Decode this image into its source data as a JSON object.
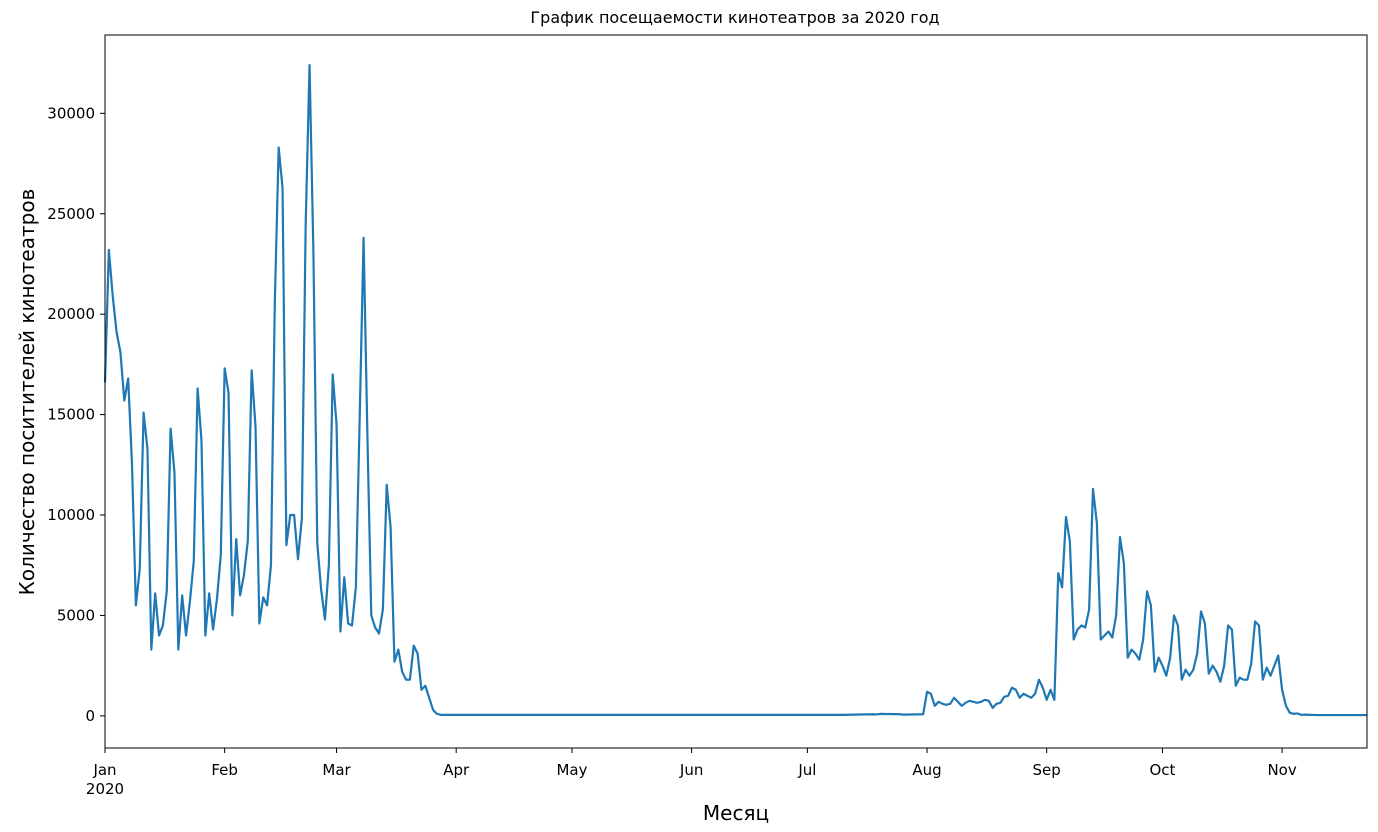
{
  "chart_data": {
    "type": "line",
    "title": "График посещаемости кинотеатров за 2020 год",
    "xlabel": "Месяц",
    "ylabel": "Количество поситителей кинотеатров",
    "x_axis": "date",
    "xlim": [
      "2020-01-01",
      "2020-11-23"
    ],
    "ylim": [
      -1600,
      33900
    ],
    "yticks": [
      0,
      5000,
      10000,
      15000,
      20000,
      25000,
      30000
    ],
    "xticks": [
      {
        "date": "2020-01-01",
        "label": "Jan",
        "sublabel": "2020"
      },
      {
        "date": "2020-02-01",
        "label": "Feb"
      },
      {
        "date": "2020-03-01",
        "label": "Mar"
      },
      {
        "date": "2020-04-01",
        "label": "Apr"
      },
      {
        "date": "2020-05-01",
        "label": "May"
      },
      {
        "date": "2020-06-01",
        "label": "Jun"
      },
      {
        "date": "2020-07-01",
        "label": "Jul"
      },
      {
        "date": "2020-08-01",
        "label": "Aug"
      },
      {
        "date": "2020-09-01",
        "label": "Sep"
      },
      {
        "date": "2020-10-01",
        "label": "Oct"
      },
      {
        "date": "2020-11-01",
        "label": "Nov"
      }
    ],
    "grid": false,
    "legend": "none",
    "line_color": "#1f77b4",
    "series": [
      {
        "x": [
          "2020-01-01",
          "2020-01-02",
          "2020-01-03",
          "2020-01-04",
          "2020-01-05",
          "2020-01-06",
          "2020-01-07",
          "2020-01-08",
          "2020-01-09",
          "2020-01-10",
          "2020-01-11",
          "2020-01-12",
          "2020-01-13",
          "2020-01-14",
          "2020-01-15",
          "2020-01-16",
          "2020-01-17",
          "2020-01-18",
          "2020-01-19",
          "2020-01-20",
          "2020-01-21",
          "2020-01-22",
          "2020-01-23",
          "2020-01-24",
          "2020-01-25",
          "2020-01-26",
          "2020-01-27",
          "2020-01-28",
          "2020-01-29",
          "2020-01-30",
          "2020-01-31",
          "2020-02-01",
          "2020-02-02",
          "2020-02-03",
          "2020-02-04",
          "2020-02-05",
          "2020-02-06",
          "2020-02-07",
          "2020-02-08",
          "2020-02-09",
          "2020-02-10",
          "2020-02-11",
          "2020-02-12",
          "2020-02-13",
          "2020-02-14",
          "2020-02-15",
          "2020-02-16",
          "2020-02-17",
          "2020-02-18",
          "2020-02-19",
          "2020-02-20",
          "2020-02-21",
          "2020-02-22",
          "2020-02-23",
          "2020-02-24",
          "2020-02-25",
          "2020-02-26",
          "2020-02-27",
          "2020-02-28",
          "2020-02-29",
          "2020-03-01",
          "2020-03-02",
          "2020-03-03",
          "2020-03-04",
          "2020-03-05",
          "2020-03-06",
          "2020-03-07",
          "2020-03-08",
          "2020-03-09",
          "2020-03-10",
          "2020-03-11",
          "2020-03-12",
          "2020-03-13",
          "2020-03-14",
          "2020-03-15",
          "2020-03-16",
          "2020-03-17",
          "2020-03-18",
          "2020-03-19",
          "2020-03-20",
          "2020-03-21",
          "2020-03-22",
          "2020-03-23",
          "2020-03-24",
          "2020-03-25",
          "2020-03-26",
          "2020-03-27",
          "2020-03-28",
          "2020-03-29",
          "2020-03-30",
          "2020-03-31",
          "2020-04-01",
          "2020-07-01",
          "2020-07-10",
          "2020-07-18",
          "2020-07-19",
          "2020-07-20",
          "2020-07-25",
          "2020-07-26",
          "2020-07-31",
          "2020-08-01",
          "2020-08-02",
          "2020-08-03",
          "2020-08-04",
          "2020-08-05",
          "2020-08-06",
          "2020-08-07",
          "2020-08-08",
          "2020-08-09",
          "2020-08-10",
          "2020-08-11",
          "2020-08-12",
          "2020-08-13",
          "2020-08-14",
          "2020-08-15",
          "2020-08-16",
          "2020-08-17",
          "2020-08-18",
          "2020-08-19",
          "2020-08-20",
          "2020-08-21",
          "2020-08-22",
          "2020-08-23",
          "2020-08-24",
          "2020-08-25",
          "2020-08-26",
          "2020-08-27",
          "2020-08-28",
          "2020-08-29",
          "2020-08-30",
          "2020-08-31",
          "2020-09-01",
          "2020-09-02",
          "2020-09-03",
          "2020-09-04",
          "2020-09-05",
          "2020-09-06",
          "2020-09-07",
          "2020-09-08",
          "2020-09-09",
          "2020-09-10",
          "2020-09-11",
          "2020-09-12",
          "2020-09-13",
          "2020-09-14",
          "2020-09-15",
          "2020-09-16",
          "2020-09-17",
          "2020-09-18",
          "2020-09-19",
          "2020-09-20",
          "2020-09-21",
          "2020-09-22",
          "2020-09-23",
          "2020-09-24",
          "2020-09-25",
          "2020-09-26",
          "2020-09-27",
          "2020-09-28",
          "2020-09-29",
          "2020-09-30",
          "2020-10-01",
          "2020-10-02",
          "2020-10-03",
          "2020-10-04",
          "2020-10-05",
          "2020-10-06",
          "2020-10-07",
          "2020-10-08",
          "2020-10-09",
          "2020-10-10",
          "2020-10-11",
          "2020-10-12",
          "2020-10-13",
          "2020-10-14",
          "2020-10-15",
          "2020-10-16",
          "2020-10-17",
          "2020-10-18",
          "2020-10-19",
          "2020-10-20",
          "2020-10-21",
          "2020-10-22",
          "2020-10-23",
          "2020-10-24",
          "2020-10-25",
          "2020-10-26",
          "2020-10-27",
          "2020-10-28",
          "2020-10-29",
          "2020-10-30",
          "2020-10-31",
          "2020-11-01",
          "2020-11-02",
          "2020-11-03",
          "2020-11-04",
          "2020-11-05",
          "2020-11-06",
          "2020-11-07",
          "2020-11-10",
          "2020-11-15",
          "2020-11-23"
        ],
        "y": [
          16600,
          23200,
          20900,
          19100,
          18100,
          15700,
          16800,
          12500,
          5500,
          7300,
          15100,
          13300,
          3300,
          6100,
          4000,
          4500,
          6200,
          14300,
          12100,
          3300,
          6000,
          4000,
          5700,
          7700,
          16300,
          13700,
          4000,
          6100,
          4300,
          5800,
          8000,
          17300,
          16100,
          5000,
          8800,
          6000,
          7000,
          8700,
          17200,
          14400,
          4600,
          5900,
          5500,
          7500,
          20600,
          28300,
          26300,
          8500,
          10000,
          10000,
          7800,
          9800,
          24500,
          32400,
          23100,
          8600,
          6300,
          4800,
          7500,
          17000,
          14500,
          4200,
          6900,
          4600,
          4500,
          6400,
          14900,
          23800,
          13900,
          5000,
          4400,
          4100,
          5300,
          11500,
          9400,
          2700,
          3300,
          2200,
          1800,
          1800,
          3500,
          3100,
          1300,
          1500,
          900,
          300,
          100,
          50,
          50,
          50,
          50,
          50,
          50,
          50,
          80,
          70,
          100,
          80,
          60,
          80,
          1200,
          1100,
          500,
          700,
          600,
          550,
          600,
          900,
          700,
          500,
          650,
          750,
          700,
          650,
          700,
          800,
          750,
          400,
          600,
          650,
          950,
          1000,
          1400,
          1300,
          900,
          1100,
          1000,
          900,
          1100,
          1800,
          1400,
          800,
          1300,
          800,
          7100,
          6400,
          9900,
          8700,
          3800,
          4300,
          4500,
          4400,
          5300,
          11300,
          9600,
          3800,
          4000,
          4200,
          3900,
          5000,
          8900,
          7600,
          2900,
          3300,
          3100,
          2800,
          3800,
          6200,
          5500,
          2200,
          2900,
          2500,
          2000,
          2900,
          5000,
          4500,
          1800,
          2300,
          2000,
          2300,
          3100,
          5200,
          4600,
          2100,
          2500,
          2200,
          1700,
          2500,
          4500,
          4300,
          1500,
          1900,
          1800,
          1800,
          2600,
          4700,
          4500,
          1800,
          2400,
          2000,
          2500,
          3000,
          1300,
          500,
          150,
          100,
          120,
          50,
          60,
          40,
          40,
          40
        ]
      }
    ]
  }
}
